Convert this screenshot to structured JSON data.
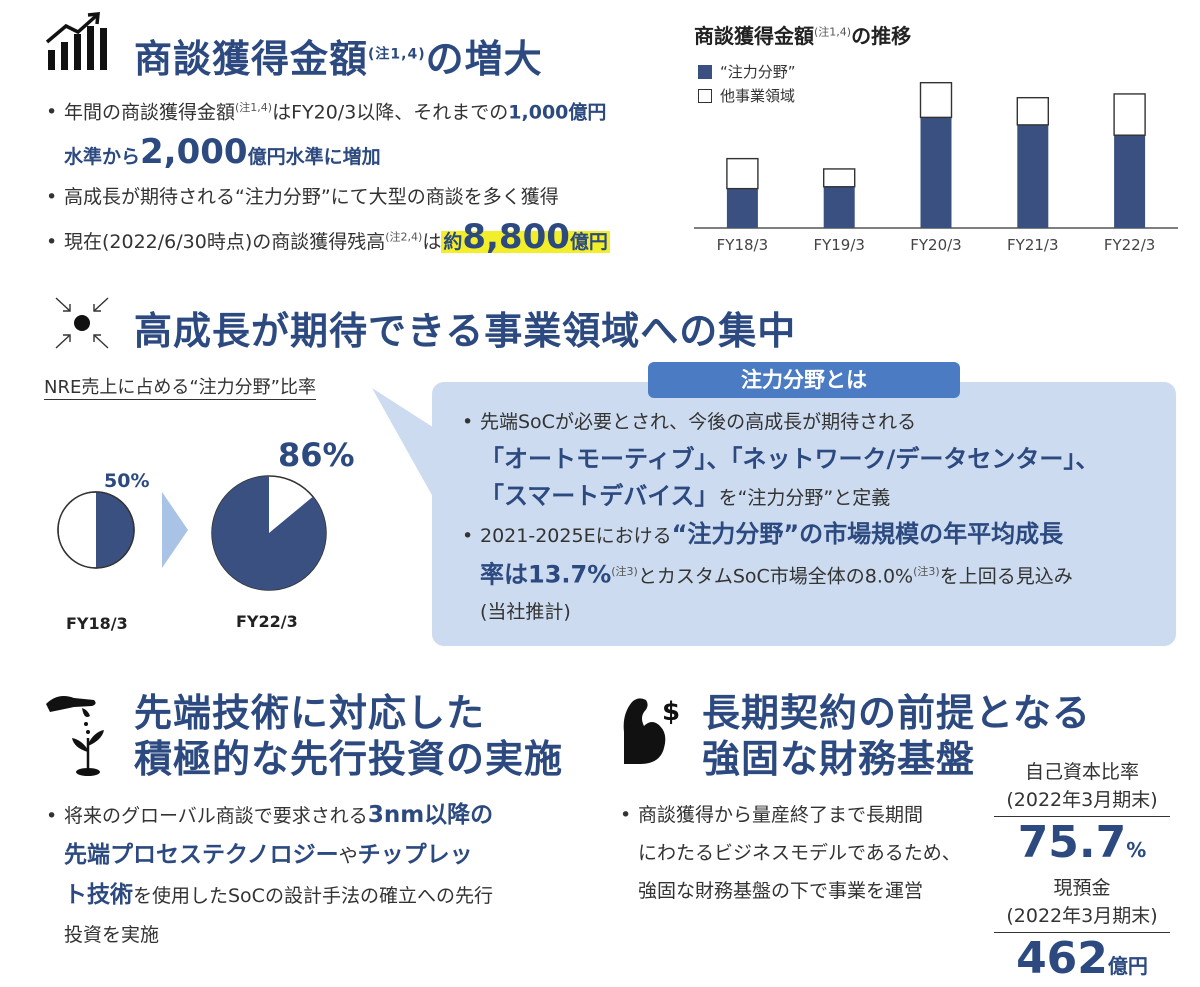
{
  "s1": {
    "title": "商談獲得金額",
    "title_note": "(注1,4)",
    "title_tail": "の増大",
    "b1": {
      "t1": "年間の商談獲得金額",
      "n1": "(注1,4)",
      "t2": "はFY20/3以降、それまでの",
      "bold1": "1,000億円",
      "bold2": "水準から",
      "big": "2,000",
      "bold3": "億円水準に増加"
    },
    "b2": "高成長が期待される“注力分野”にて大型の商談を多く獲得",
    "b3": {
      "t1": "現在(2022/6/30時点)の商談獲得残高",
      "n1": "(注2,4)",
      "t2": "は",
      "hl_pre": "約",
      "hl_big": "8,800",
      "hl_unit": "億円"
    }
  },
  "chart_head": {
    "title": "商談獲得金額",
    "note": "(注1,4)",
    "tail": "の推移"
  },
  "chart_data": {
    "type": "bar",
    "stacked": true,
    "categories": [
      "FY18/3",
      "FY19/3",
      "FY20/3",
      "FY21/3",
      "FY22/3"
    ],
    "series": [
      {
        "name": "“注力分野”",
        "values": [
          42,
          44,
          118,
          110,
          99
        ],
        "color": "#3a5080"
      },
      {
        "name": "他事業領域",
        "values": [
          32,
          19,
          37,
          29,
          44
        ],
        "color": "#ffffff"
      }
    ],
    "ylim": [
      0,
      160
    ],
    "legend": "top-left",
    "grid": false,
    "colors": {
      "accent": "#3a5080"
    }
  },
  "s2": {
    "title": "高成長が期待できる事業領域への集中",
    "ratio_label": "NRE売上に占める“注力分野”比率",
    "pie1": {
      "label": "FY18/3",
      "value_label": "50%",
      "fraction": 0.5
    },
    "pie2": {
      "label": "FY22/3",
      "value_label": "86%",
      "fraction": 0.86
    },
    "callout": {
      "title": "注力分野とは",
      "l1": "先端SoCが必要とされ、今後の高成長が期待される",
      "l2": "「オートモーティブ」、「ネットワーク/データセンター」、",
      "l3b": "「スマートデバイス」",
      "l3": "を“注力分野”と定義",
      "l4": "2021-2025Eにおける",
      "l4b": "“注力分野”の市場規模の年平均成長",
      "l5b": "率は13.7%",
      "l5n": "(注3)",
      "l5": "とカスタムSoC市場全体の8.0%",
      "l5n2": "(注3)",
      "l5t": "を上回る見込み",
      "l6": "(当社推計)"
    }
  },
  "s3": {
    "title1": "先端技術に対応した",
    "title2": "積極的な先行投資の実施",
    "l1": "将来のグローバル商談で要求される",
    "l1b": "3nm以降の",
    "l2b": "先端プロセステクノロジー",
    "l2": "や",
    "l2b2": "チップレッ",
    "l3b": "ト技術",
    "l3": "を使用したSoCの設計手法の確立への先行",
    "l4": "投資を実施"
  },
  "s4": {
    "title1": "長期契約の前提となる",
    "title2": "強固な財務基盤",
    "l1": "商談獲得から量産終了まで長期間",
    "l2": "にわたるビジネスモデルであるため、",
    "l3": "強固な財務基盤の下で事業を運営",
    "f1_label": "自己資本比率",
    "f1_period": "(2022年3月期末)",
    "f1_value": "75.7",
    "f1_unit": "%",
    "f2_label": "現預金",
    "f2_period": "(2022年3月期末)",
    "f2_value": "462",
    "f2_unit": "億円"
  }
}
